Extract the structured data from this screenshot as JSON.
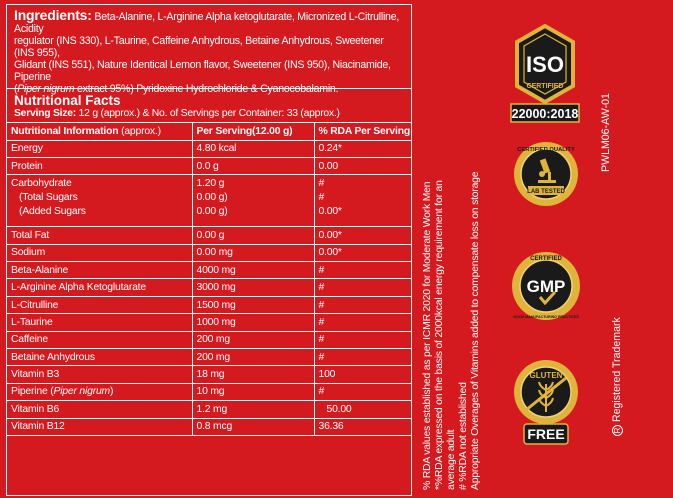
{
  "ingredients": {
    "title": "Ingredients:",
    "line1": "Beta-Alanine, L-Arginine Alpha ketoglutarate, Micronized L-Citrulline, Acidity",
    "line2": "regulator (INS 330), L-Taurine, Caffeine Anhydrous, Betaine Anhydrous, Sweetener (INS 955),",
    "line3": "Glidant (INS 551), Nature Identical Lemon flavor, Sweetener (INS 950), Niacinamide, Piperine",
    "line4_ital": "Piper nigrum",
    "line4_rest": " extract 95%) Pyridoxine Hydrochloride & Cyanocobalamin."
  },
  "nutrition": {
    "title": "Nutritional Facts",
    "serving_label": "Serving Size:",
    "serving_text": " 12 g (approx.) & No. of Servings per Container: 33 (approx.)",
    "headers": {
      "info": "Nutritional Information",
      "info_sub": " (approx.)",
      "per_serving": "Per Serving(12.00 g)",
      "rda": "% RDA Per Serving"
    },
    "rows": [
      {
        "name": "Energy",
        "value": "4.80 kcal",
        "rda": "0.24*"
      },
      {
        "name": "Protein",
        "value": "0.0 g",
        "rda": "0.00"
      },
      {
        "name": "Carbohydrate",
        "value": "1.20 g",
        "rda": "#",
        "sub1": "(Total Sugars",
        "sub1_value": "0.00 g)",
        "sub1_rda": "#",
        "sub2": "(Added Sugars",
        "sub2_value": "0.00 g)",
        "sub2_rda": "0.00*"
      },
      {
        "name": "Total Fat",
        "value": "0.00 g",
        "rda": "0.00*"
      },
      {
        "name": "Sodium",
        "value": "0.00 mg",
        "rda": "0.00*"
      },
      {
        "name": "Beta-Alanine",
        "value": "4000 mg",
        "rda": "#"
      },
      {
        "name": "L-Arginine Alpha Ketoglutarate",
        "value": "3000 mg",
        "rda": "#"
      },
      {
        "name": "L-Citrulline",
        "value": "1500 mg",
        "rda": "#"
      },
      {
        "name": "L-Taurine",
        "value": "1000 mg",
        "rda": "#"
      },
      {
        "name": "Caffeine",
        "value": "200 mg",
        "rda": "#"
      },
      {
        "name": "Betaine Anhydrous",
        "value": "200 mg",
        "rda": "#"
      },
      {
        "name": "Vitamin B3",
        "value": "18 mg",
        "rda": "100"
      },
      {
        "name": "Piperine",
        "name_ital": "Piper nigrum",
        "value": "10 mg",
        "rda": "#"
      },
      {
        "name": "Vitamin B6",
        "value": "1.2 mg",
        "rda": "50.00"
      },
      {
        "name": "Vitamin B12",
        "value": "0.8 mcg",
        "rda": "36.36"
      }
    ]
  },
  "footnote": {
    "l1": "% RDA values established as per ICMR 2020 for Moderate Work Men",
    "l2": "*%RDA expressed on the basis of 2000kcal energy requirement for an",
    "l3": "average adult",
    "l4": "# %RDA not established",
    "l5": "Appropriate Overages of Vitamins added to compensate loss on storage"
  },
  "side": {
    "code": "PWLM06-AW-01",
    "reg_symbol": "R",
    "trademark": "Registered Trademark"
  },
  "badges": {
    "iso_main": "ISO",
    "iso_certified": "CERTIFIED",
    "iso_number": "22000:2018",
    "lab_top": "CERTIFIED QUALITY",
    "lab_bottom": "LAB TESTED",
    "gmp_top": "CERTIFIED",
    "gmp_main": "GMP",
    "gmp_bottom": "GOOD MANUFACTURING PRACTICES",
    "gluten_top": "GLUTEN",
    "gluten_bottom": "FREE"
  },
  "colors": {
    "background": "#d41a1f",
    "gold": "#e0b43a",
    "dark": "#1a1a1a"
  }
}
